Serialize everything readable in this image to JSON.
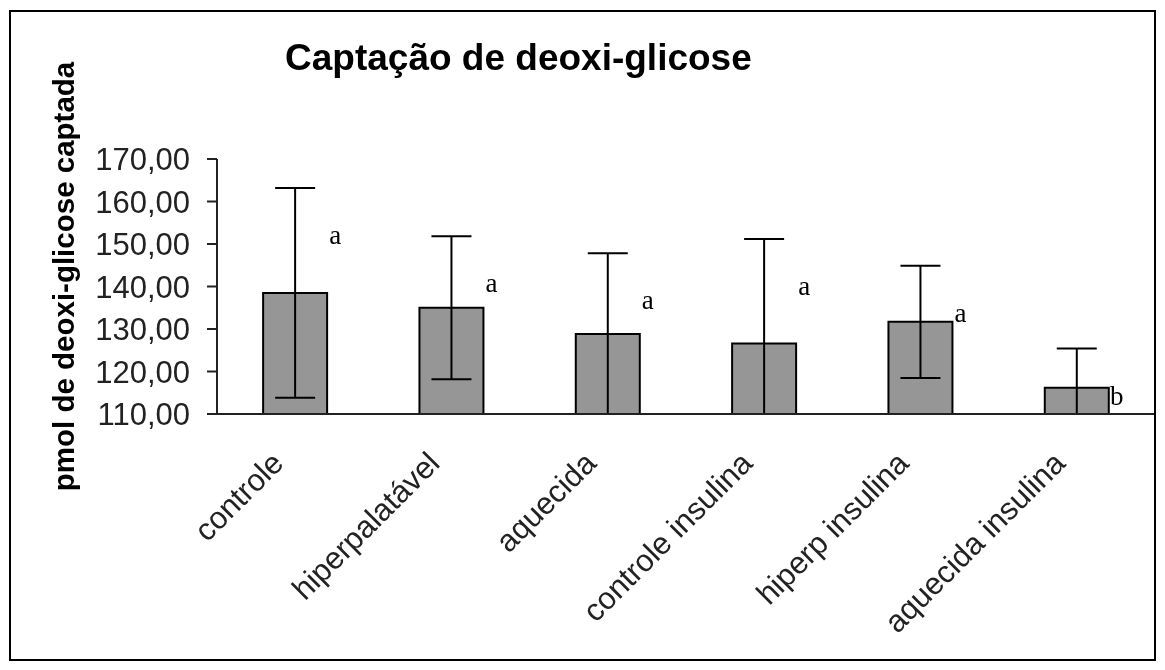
{
  "chart_data": {
    "type": "bar",
    "title": "Captação de deoxi-glicose",
    "ylabel": "pmol de deoxi-glicose captada",
    "categories": [
      "controle",
      "hiperpalatável",
      "aquecida",
      "controle insulina",
      "hiperp insulina",
      "aquecida insulina"
    ],
    "values": [
      138.5,
      135.0,
      128.8,
      126.6,
      131.7,
      116.2
    ],
    "errors": [
      24.7,
      16.8,
      [
        110,
        147.8
      ],
      [
        110,
        151.2
      ],
      13.2,
      [
        110,
        125.4
      ]
    ],
    "color": "#969696",
    "ylim": [
      110,
      170
    ],
    "yticks": [
      {
        "value": 110,
        "label": "110,00"
      },
      {
        "value": 120,
        "label": "120,00"
      },
      {
        "value": 130,
        "label": "130,00"
      },
      {
        "value": 140,
        "label": "140,00"
      },
      {
        "value": 150,
        "label": "150,00"
      },
      {
        "value": 160,
        "label": "160,00"
      },
      {
        "value": 170,
        "label": "170,00"
      }
    ],
    "annotations": [
      "a",
      "a",
      "a",
      "a",
      "a",
      "b"
    ]
  }
}
